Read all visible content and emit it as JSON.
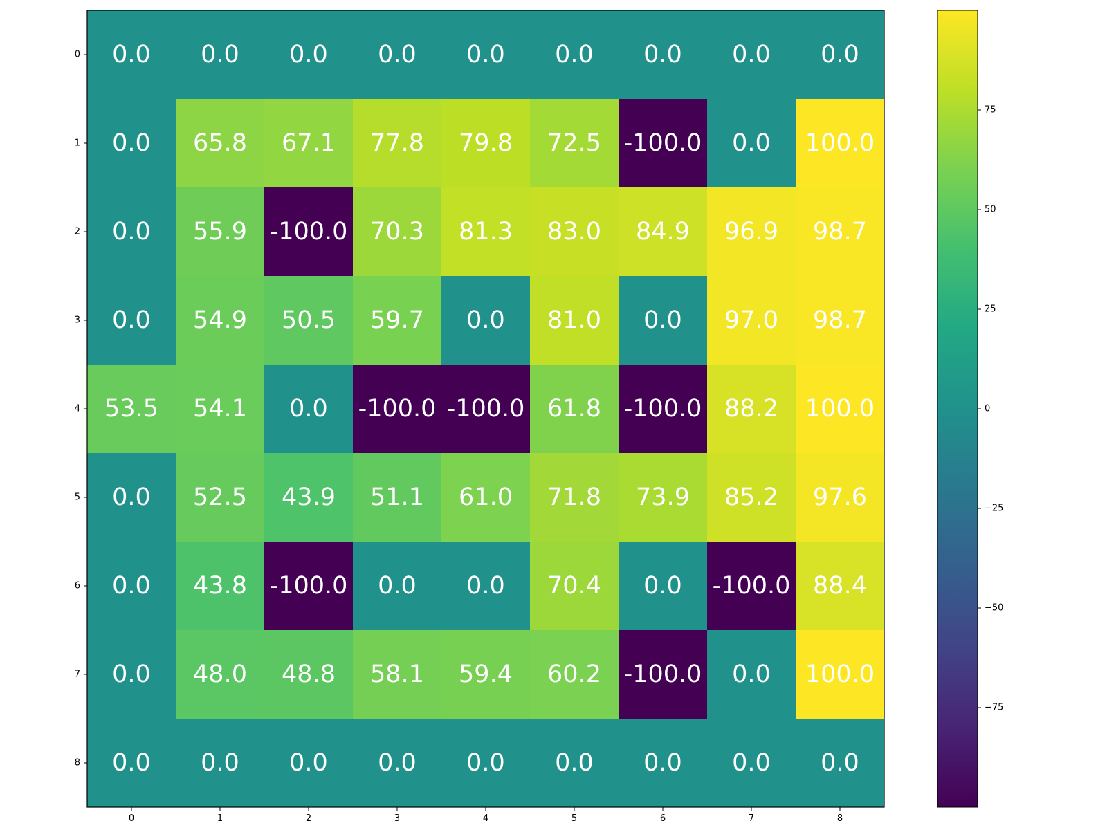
{
  "chart_data": {
    "type": "heatmap",
    "title": "",
    "xlabel": "",
    "ylabel": "",
    "x_ticks": [
      "0",
      "1",
      "2",
      "3",
      "4",
      "5",
      "6",
      "7",
      "8"
    ],
    "y_ticks": [
      "0",
      "1",
      "2",
      "3",
      "4",
      "5",
      "6",
      "7",
      "8"
    ],
    "colormap": "viridis",
    "color_range": [
      -100,
      100
    ],
    "colorbar_ticks": [
      75,
      50,
      25,
      0,
      -25,
      -50,
      -75
    ],
    "colorbar_tick_labels": [
      "75",
      "50",
      "25",
      "0",
      "−25",
      "−50",
      "−75"
    ],
    "values": [
      [
        0.0,
        0.0,
        0.0,
        0.0,
        0.0,
        0.0,
        0.0,
        0.0,
        0.0
      ],
      [
        0.0,
        65.8,
        67.1,
        77.8,
        79.8,
        72.5,
        -100.0,
        0.0,
        100.0
      ],
      [
        0.0,
        55.9,
        -100.0,
        70.3,
        81.3,
        83.0,
        84.9,
        96.9,
        98.7
      ],
      [
        0.0,
        54.9,
        50.5,
        59.7,
        0.0,
        81.0,
        0.0,
        97.0,
        98.7
      ],
      [
        53.5,
        54.1,
        0.0,
        -100.0,
        -100.0,
        61.8,
        -100.0,
        88.2,
        100.0
      ],
      [
        0.0,
        52.5,
        43.9,
        51.1,
        61.0,
        71.8,
        73.9,
        85.2,
        97.6
      ],
      [
        0.0,
        43.8,
        -100.0,
        0.0,
        0.0,
        70.4,
        0.0,
        -100.0,
        88.4
      ],
      [
        0.0,
        48.0,
        48.8,
        58.1,
        59.4,
        60.2,
        -100.0,
        0.0,
        100.0
      ],
      [
        0.0,
        0.0,
        0.0,
        0.0,
        0.0,
        0.0,
        0.0,
        0.0,
        0.0
      ]
    ],
    "cell_labels": [
      [
        "0.0",
        "0.0",
        "0.0",
        "0.0",
        "0.0",
        "0.0",
        "0.0",
        "0.0",
        "0.0"
      ],
      [
        "0.0",
        "65.8",
        "67.1",
        "77.8",
        "79.8",
        "72.5",
        "-100.0",
        "0.0",
        "100.0"
      ],
      [
        "0.0",
        "55.9",
        "-100.0",
        "70.3",
        "81.3",
        "83.0",
        "84.9",
        "96.9",
        "98.7"
      ],
      [
        "0.0",
        "54.9",
        "50.5",
        "59.7",
        "0.0",
        "81.0",
        "0.0",
        "97.0",
        "98.7"
      ],
      [
        "53.5",
        "54.1",
        "0.0",
        "-100.0",
        "-100.0",
        "61.8",
        "-100.0",
        "88.2",
        "100.0"
      ],
      [
        "0.0",
        "52.5",
        "43.9",
        "51.1",
        "61.0",
        "71.8",
        "73.9",
        "85.2",
        "97.6"
      ],
      [
        "0.0",
        "43.8",
        "-100.0",
        "0.0",
        "0.0",
        "70.4",
        "0.0",
        "-100.0",
        "88.4"
      ],
      [
        "0.0",
        "48.0",
        "48.8",
        "58.1",
        "59.4",
        "60.2",
        "-100.0",
        "0.0",
        "100.0"
      ],
      [
        "0.0",
        "0.0",
        "0.0",
        "0.0",
        "0.0",
        "0.0",
        "0.0",
        "0.0",
        "0.0"
      ]
    ]
  }
}
